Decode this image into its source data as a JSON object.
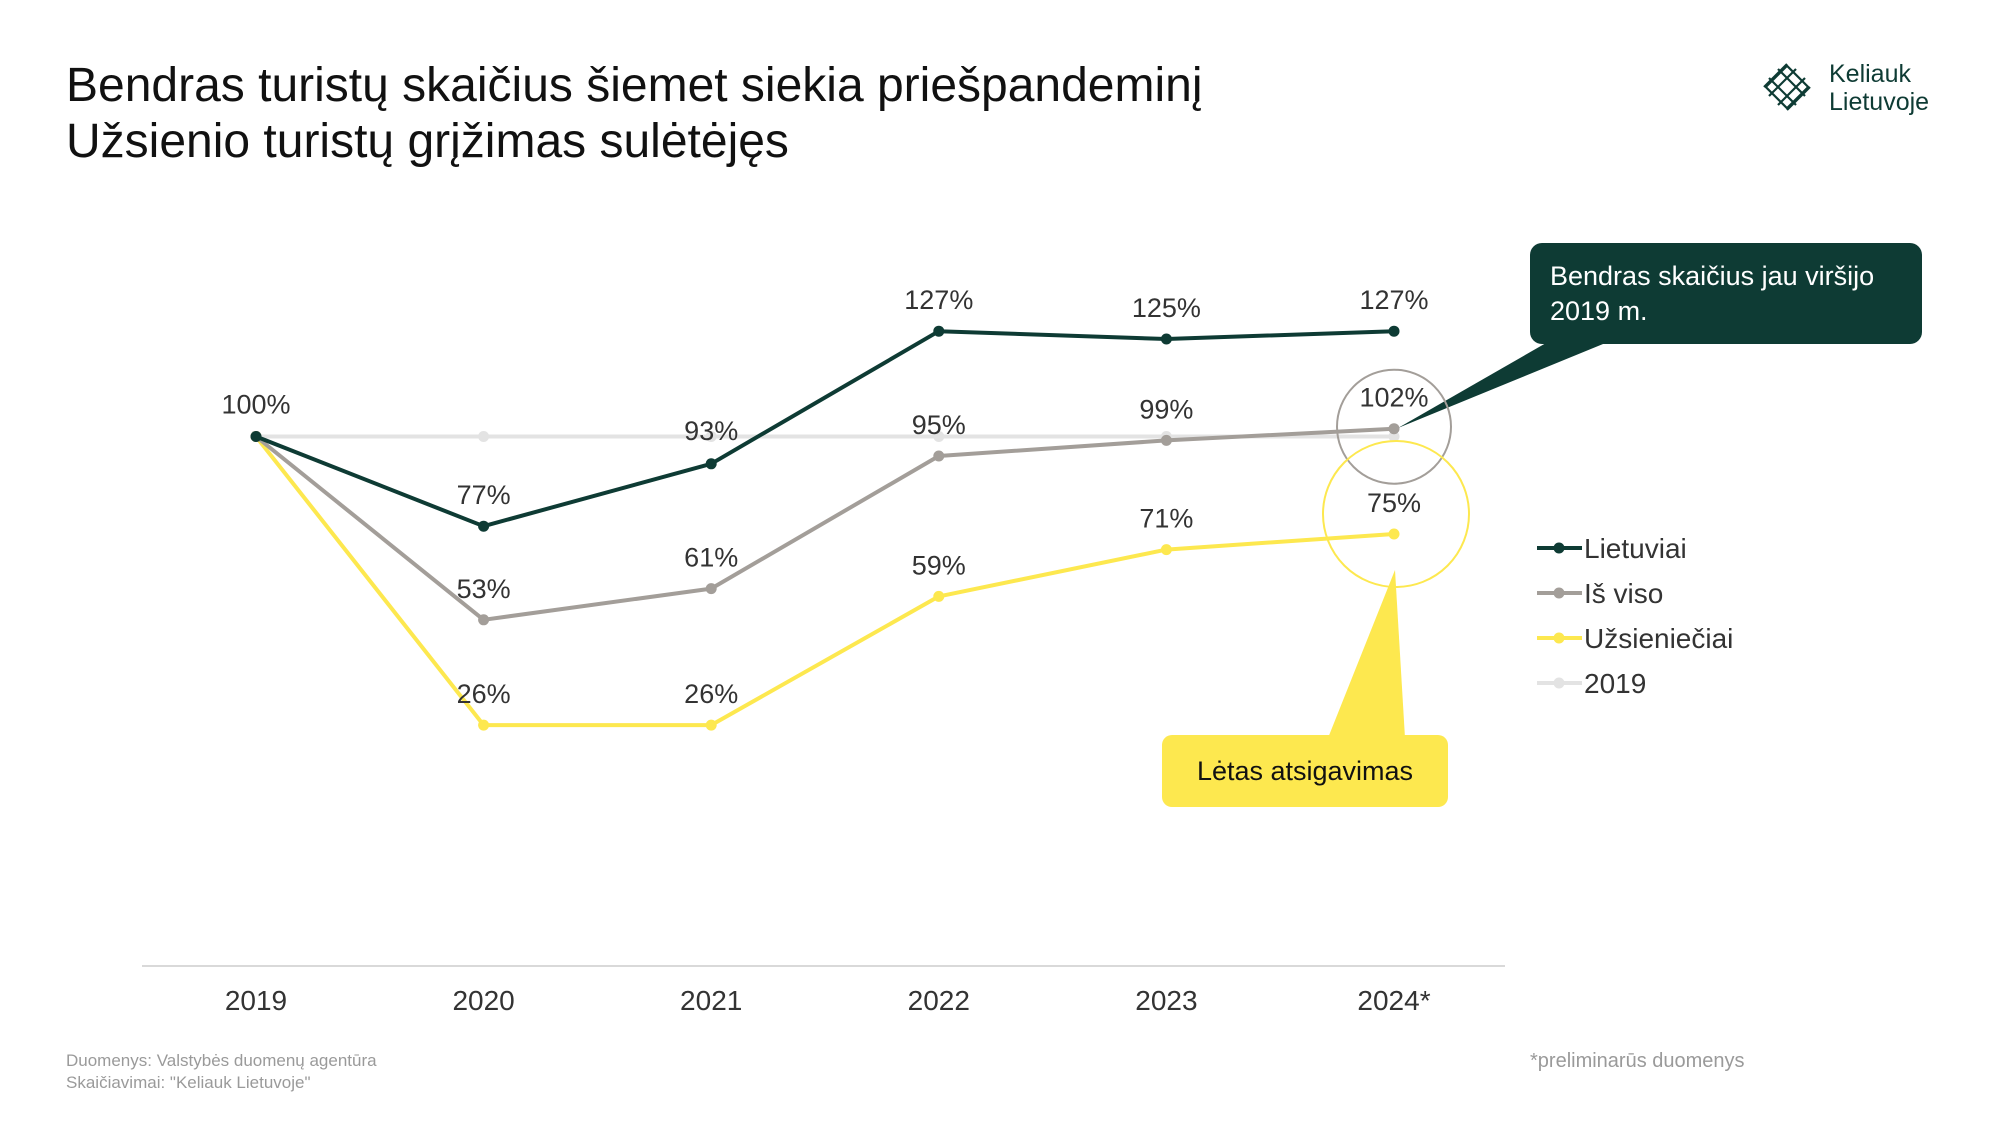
{
  "title": {
    "line1": "Bendras turistų skaičius šiemet siekia priešpandeminį",
    "line2": "Užsienio turistų grįžimas sulėtėjęs"
  },
  "logo": {
    "line1": "Keliauk",
    "line2": "Lietuvoje",
    "icon": "diamond-lattice-icon",
    "color": "#0e3b34"
  },
  "callouts": {
    "total": "Bendras skaičius jau viršijo 2019 m.",
    "foreign": "Lėtas atsigavimas"
  },
  "footer": {
    "source": "Duomenys: Valstybės duomenų agentūra",
    "calc": "Skaičiavimai: \"Keliauk Lietuvoje\"",
    "note": "*preliminarūs duomenys"
  },
  "chart_data": {
    "type": "line",
    "categories": [
      "2019",
      "2020",
      "2021",
      "2022",
      "2023",
      "2024*"
    ],
    "ylim": [
      0,
      140
    ],
    "grid": false,
    "legend_position": "right",
    "series": [
      {
        "name": "2019",
        "values": [
          100,
          100,
          100,
          100,
          100,
          100
        ],
        "color": "#e3e3e3",
        "labels": false
      },
      {
        "name": "Užsieniečiai",
        "values": [
          100,
          26,
          26,
          59,
          71,
          75
        ],
        "color": "#fde84f",
        "labels": true
      },
      {
        "name": "Iš viso",
        "values": [
          100,
          53,
          61,
          95,
          99,
          102
        ],
        "color": "#a39e99",
        "labels": true
      },
      {
        "name": "Lietuviai",
        "values": [
          100,
          77,
          93,
          127,
          125,
          127
        ],
        "color": "#0e3b34",
        "labels": true
      }
    ],
    "legend_order": [
      "Lietuviai",
      "Iš viso",
      "Užsieniečiai",
      "2019"
    ],
    "data_labels": [
      {
        "text": "100%",
        "series": "Iš viso",
        "index": 0
      },
      {
        "text": "77%",
        "series": "Lietuviai",
        "index": 1
      },
      {
        "text": "93%",
        "series": "Lietuviai",
        "index": 2
      },
      {
        "text": "127%",
        "series": "Lietuviai",
        "index": 3
      },
      {
        "text": "125%",
        "series": "Lietuviai",
        "index": 4
      },
      {
        "text": "127%",
        "series": "Lietuviai",
        "index": 5
      },
      {
        "text": "53%",
        "series": "Iš viso",
        "index": 1
      },
      {
        "text": "61%",
        "series": "Iš viso",
        "index": 2
      },
      {
        "text": "95%",
        "series": "Iš viso",
        "index": 3
      },
      {
        "text": "99%",
        "series": "Iš viso",
        "index": 4
      },
      {
        "text": "102%",
        "series": "Iš viso",
        "index": 5
      },
      {
        "text": "26%",
        "series": "Užsieniečiai",
        "index": 1
      },
      {
        "text": "26%",
        "series": "Užsieniečiai",
        "index": 2
      },
      {
        "text": "59%",
        "series": "Užsieniečiai",
        "index": 3
      },
      {
        "text": "71%",
        "series": "Užsieniečiai",
        "index": 4
      },
      {
        "text": "75%",
        "series": "Užsieniečiai",
        "index": 5
      }
    ]
  }
}
